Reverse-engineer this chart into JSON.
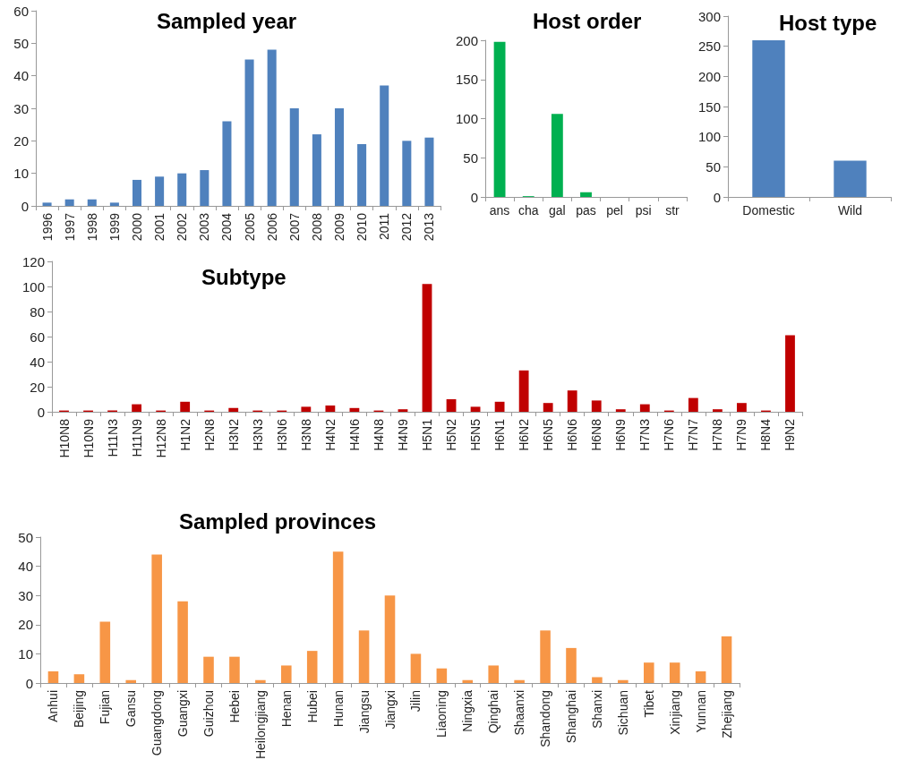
{
  "chart_data": [
    {
      "type": "bar",
      "title": "Sampled year",
      "categories": [
        "1996",
        "1997",
        "1998",
        "1999",
        "2000",
        "2001",
        "2002",
        "2003",
        "2004",
        "2005",
        "2006",
        "2007",
        "2008",
        "2009",
        "2010",
        "2011",
        "2012",
        "2013"
      ],
      "values": [
        1,
        2,
        2,
        1,
        8,
        9,
        10,
        11,
        26,
        45,
        48,
        30,
        22,
        30,
        19,
        37,
        20,
        21
      ],
      "color": "#4f81bd",
      "ylim": [
        0,
        60
      ],
      "yticks": [
        0,
        10,
        20,
        30,
        40,
        50,
        60
      ]
    },
    {
      "type": "bar",
      "title": "Host order",
      "categories": [
        "ans",
        "cha",
        "gal",
        "pas",
        "pel",
        "psi",
        "str"
      ],
      "values": [
        198,
        1,
        106,
        6,
        0,
        0,
        0
      ],
      "color": "#00b050",
      "ylim": [
        0,
        200
      ],
      "yticks": [
        0,
        50,
        100,
        150,
        200
      ]
    },
    {
      "type": "bar",
      "title": "Host type",
      "categories": [
        "Domestic",
        "Wild"
      ],
      "values": [
        260,
        60
      ],
      "color": "#4f81bd",
      "ylim": [
        0,
        300
      ],
      "yticks": [
        0,
        50,
        100,
        150,
        200,
        250,
        300
      ]
    },
    {
      "type": "bar",
      "title": "Subtype",
      "categories": [
        "H10N8",
        "H10N9",
        "H11N3",
        "H11N9",
        "H12N8",
        "H1N2",
        "H2N8",
        "H3N2",
        "H3N3",
        "H3N6",
        "H3N8",
        "H4N2",
        "H4N6",
        "H4N8",
        "H4N9",
        "H5N1",
        "H5N2",
        "H5N5",
        "H6N1",
        "H6N2",
        "H6N5",
        "H6N6",
        "H6N8",
        "H6N9",
        "H7N3",
        "H7N6",
        "H7N7",
        "H7N8",
        "H7N9",
        "H8N4",
        "H9N2"
      ],
      "values": [
        1,
        1,
        1,
        6,
        1,
        8,
        1,
        3,
        1,
        1,
        4,
        5,
        3,
        1,
        2,
        102,
        10,
        4,
        8,
        33,
        7,
        17,
        9,
        2,
        6,
        1,
        11,
        2,
        7,
        1,
        61
      ],
      "color": "#c00000",
      "ylim": [
        0,
        120
      ],
      "yticks": [
        0,
        20,
        40,
        60,
        80,
        100,
        120
      ]
    },
    {
      "type": "bar",
      "title": "Sampled provinces",
      "categories": [
        "Anhui",
        "Beijing",
        "Fujian",
        "Gansu",
        "Guangdong",
        "Guangxi",
        "Guizhou",
        "Hebei",
        "Heilongjiang",
        "Henan",
        "Hubei",
        "Hunan",
        "Jiangsu",
        "Jiangxi",
        "Jilin",
        "Liaoning",
        "Ningxia",
        "Qinghai",
        "Shaanxi",
        "Shandong",
        "Shanghai",
        "Shanxi",
        "Sichuan",
        "Tibet",
        "Xinjiang",
        "Yunnan",
        "Zhejiang"
      ],
      "values": [
        4,
        3,
        21,
        1,
        44,
        28,
        9,
        9,
        1,
        6,
        11,
        45,
        18,
        30,
        10,
        5,
        1,
        6,
        1,
        18,
        12,
        2,
        1,
        7,
        7,
        4,
        16
      ],
      "color": "#f79646",
      "ylim": [
        0,
        50
      ],
      "yticks": [
        0,
        10,
        20,
        30,
        40,
        50
      ]
    }
  ]
}
